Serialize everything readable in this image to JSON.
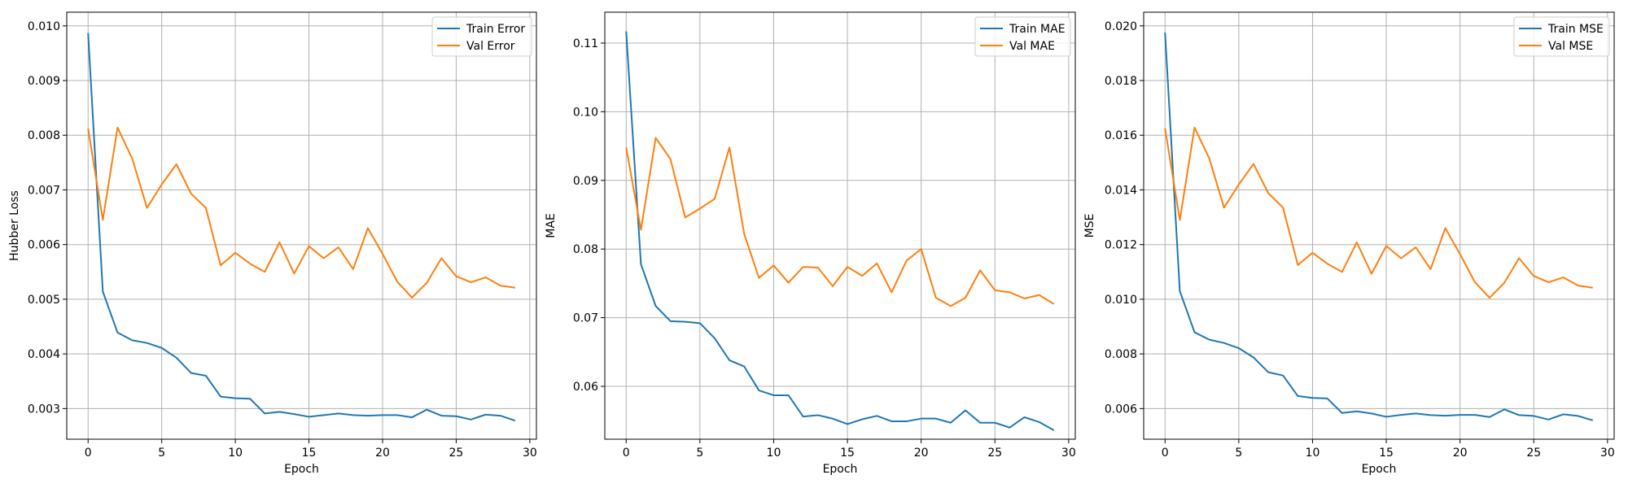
{
  "chart_data": [
    {
      "type": "line",
      "title": "",
      "xlabel": "Epoch",
      "ylabel": "Hubber Loss",
      "xlim": [
        -1.45,
        30.45
      ],
      "ylim": [
        0.00244,
        0.01025
      ],
      "xticks": [
        0,
        5,
        10,
        15,
        20,
        25,
        30
      ],
      "yticks": [
        0.003,
        0.004,
        0.005,
        0.006,
        0.007,
        0.008,
        0.009,
        0.01
      ],
      "ytick_labels": [
        "0.003",
        "0.004",
        "0.005",
        "0.006",
        "0.007",
        "0.008",
        "0.009",
        "0.010"
      ],
      "grid": true,
      "legend": "top-right",
      "x": [
        0,
        1,
        2,
        3,
        4,
        5,
        6,
        7,
        8,
        9,
        10,
        11,
        12,
        13,
        14,
        15,
        16,
        17,
        18,
        19,
        20,
        21,
        22,
        23,
        24,
        25,
        26,
        27,
        28,
        29
      ],
      "series": [
        {
          "name": "Train Error",
          "color": "#1f77b4",
          "values": [
            0.00987,
            0.00514,
            0.00439,
            0.00425,
            0.0042,
            0.00411,
            0.00393,
            0.00365,
            0.0036,
            0.00322,
            0.00319,
            0.00318,
            0.00291,
            0.00294,
            0.0029,
            0.00285,
            0.00288,
            0.00291,
            0.00288,
            0.00287,
            0.00288,
            0.00288,
            0.00284,
            0.00298,
            0.00287,
            0.00286,
            0.0028,
            0.00289,
            0.00287,
            0.00278
          ]
        },
        {
          "name": "Val Error",
          "color": "#ff7f0e",
          "values": [
            0.00812,
            0.00645,
            0.00814,
            0.00757,
            0.00667,
            0.0071,
            0.00747,
            0.00693,
            0.00667,
            0.00562,
            0.00585,
            0.00565,
            0.0055,
            0.00604,
            0.00547,
            0.00597,
            0.00575,
            0.00595,
            0.00555,
            0.0063,
            0.00583,
            0.00532,
            0.00503,
            0.0053,
            0.00575,
            0.00542,
            0.00531,
            0.0054,
            0.00525,
            0.00521
          ]
        }
      ]
    },
    {
      "type": "line",
      "title": "",
      "xlabel": "Epoch",
      "ylabel": "MAE",
      "xlim": [
        -1.45,
        30.45
      ],
      "ylim": [
        0.0523,
        0.1145
      ],
      "xticks": [
        0,
        5,
        10,
        15,
        20,
        25,
        30
      ],
      "yticks": [
        0.06,
        0.07,
        0.08,
        0.09,
        0.1,
        0.11
      ],
      "ytick_labels": [
        "0.06",
        "0.07",
        "0.08",
        "0.09",
        "0.10",
        "0.11"
      ],
      "grid": true,
      "legend": "top-right",
      "x": [
        0,
        1,
        2,
        3,
        4,
        5,
        6,
        7,
        8,
        9,
        10,
        11,
        12,
        13,
        14,
        15,
        16,
        17,
        18,
        19,
        20,
        21,
        22,
        23,
        24,
        25,
        26,
        27,
        28,
        29
      ],
      "series": [
        {
          "name": "Train MAE",
          "color": "#1f77b4",
          "values": [
            0.1117,
            0.0778,
            0.0717,
            0.0695,
            0.0694,
            0.0692,
            0.067,
            0.0638,
            0.0629,
            0.0594,
            0.0587,
            0.0587,
            0.0556,
            0.0558,
            0.0553,
            0.0545,
            0.0552,
            0.0557,
            0.0549,
            0.0549,
            0.0553,
            0.0553,
            0.0547,
            0.0565,
            0.0547,
            0.0547,
            0.054,
            0.0555,
            0.0548,
            0.0536
          ]
        },
        {
          "name": "Val MAE",
          "color": "#ff7f0e",
          "values": [
            0.0948,
            0.0828,
            0.0962,
            0.0931,
            0.0846,
            0.0859,
            0.0873,
            0.0948,
            0.0822,
            0.0758,
            0.0776,
            0.0751,
            0.0774,
            0.0773,
            0.0746,
            0.0774,
            0.0761,
            0.0779,
            0.0737,
            0.0783,
            0.08,
            0.0729,
            0.0717,
            0.0729,
            0.0769,
            0.074,
            0.0737,
            0.0728,
            0.0733,
            0.072
          ]
        }
      ]
    },
    {
      "type": "line",
      "title": "",
      "xlabel": "Epoch",
      "ylabel": "MSE",
      "xlim": [
        -1.45,
        30.45
      ],
      "ylim": [
        0.00488,
        0.0205
      ],
      "xticks": [
        0,
        5,
        10,
        15,
        20,
        25,
        30
      ],
      "yticks": [
        0.006,
        0.008,
        0.01,
        0.012,
        0.014,
        0.016,
        0.018,
        0.02
      ],
      "ytick_labels": [
        "0.006",
        "0.008",
        "0.010",
        "0.012",
        "0.014",
        "0.016",
        "0.018",
        "0.020"
      ],
      "grid": true,
      "legend": "top-right",
      "x": [
        0,
        1,
        2,
        3,
        4,
        5,
        6,
        7,
        8,
        9,
        10,
        11,
        12,
        13,
        14,
        15,
        16,
        17,
        18,
        19,
        20,
        21,
        22,
        23,
        24,
        25,
        26,
        27,
        28,
        29
      ],
      "series": [
        {
          "name": "Train MSE",
          "color": "#1f77b4",
          "values": [
            0.01975,
            0.0103,
            0.00879,
            0.00852,
            0.0084,
            0.00821,
            0.00787,
            0.00733,
            0.00721,
            0.00646,
            0.00639,
            0.00637,
            0.00584,
            0.0059,
            0.00582,
            0.0057,
            0.00577,
            0.00582,
            0.00576,
            0.00574,
            0.00577,
            0.00577,
            0.00569,
            0.00597,
            0.00576,
            0.00573,
            0.0056,
            0.00579,
            0.00573,
            0.00557
          ]
        },
        {
          "name": "Val MSE",
          "color": "#ff7f0e",
          "values": [
            0.01625,
            0.0129,
            0.01628,
            0.01515,
            0.01335,
            0.0142,
            0.01495,
            0.01388,
            0.01335,
            0.01125,
            0.0117,
            0.0113,
            0.011,
            0.01208,
            0.01093,
            0.01195,
            0.0115,
            0.0119,
            0.0111,
            0.0126,
            0.01165,
            0.01063,
            0.01005,
            0.0106,
            0.0115,
            0.01085,
            0.01062,
            0.0108,
            0.0105,
            0.01042
          ]
        }
      ]
    }
  ]
}
